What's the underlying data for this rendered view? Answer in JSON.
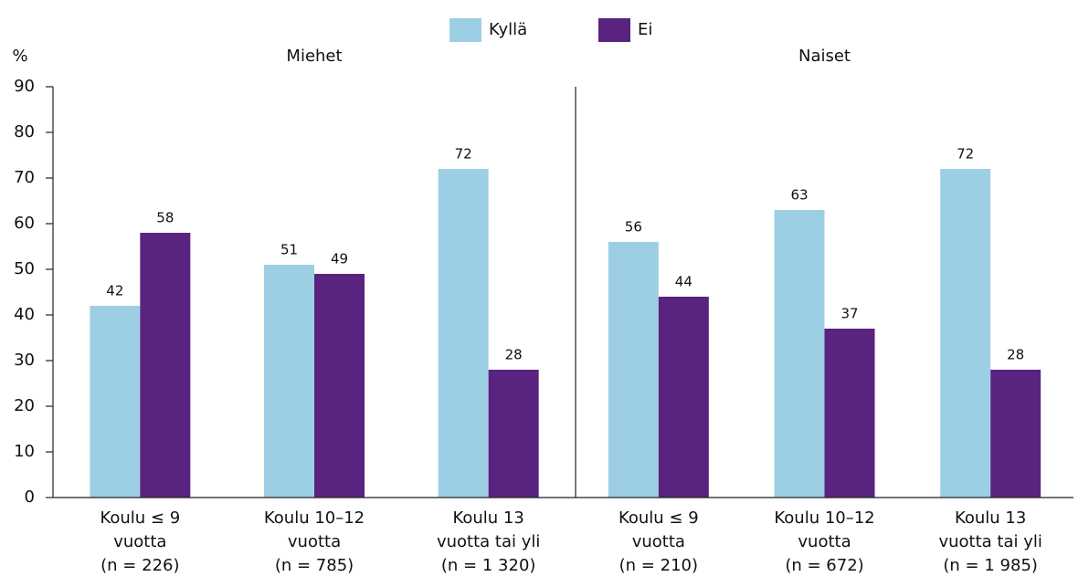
{
  "chart_data": {
    "type": "bar",
    "ylabel": "%",
    "ylim": [
      0,
      90
    ],
    "yticks": [
      0,
      10,
      20,
      30,
      40,
      50,
      60,
      70,
      80,
      90
    ],
    "series": [
      {
        "name": "Kyllä",
        "color": "#9dcfe4"
      },
      {
        "name": "Ei",
        "color": "#5a2380"
      }
    ],
    "panels": [
      {
        "title": "Miehet",
        "categories": [
          [
            "Koulu ≤ 9",
            "vuotta",
            "(n = 226)"
          ],
          [
            "Koulu 10–12",
            "vuotta",
            "(n = 785)"
          ],
          [
            "Koulu 13",
            "vuotta tai yli",
            "(n = 1 320)"
          ]
        ],
        "values": [
          [
            42,
            51,
            72
          ],
          [
            58,
            49,
            28
          ]
        ]
      },
      {
        "title": "Naiset",
        "categories": [
          [
            "Koulu ≤ 9",
            "vuotta",
            "(n = 210)"
          ],
          [
            "Koulu 10–12",
            "vuotta",
            "(n = 672)"
          ],
          [
            "Koulu 13",
            "vuotta tai yli",
            "(n = 1 985)"
          ]
        ],
        "values": [
          [
            56,
            63,
            72
          ],
          [
            44,
            37,
            28
          ]
        ]
      }
    ]
  }
}
